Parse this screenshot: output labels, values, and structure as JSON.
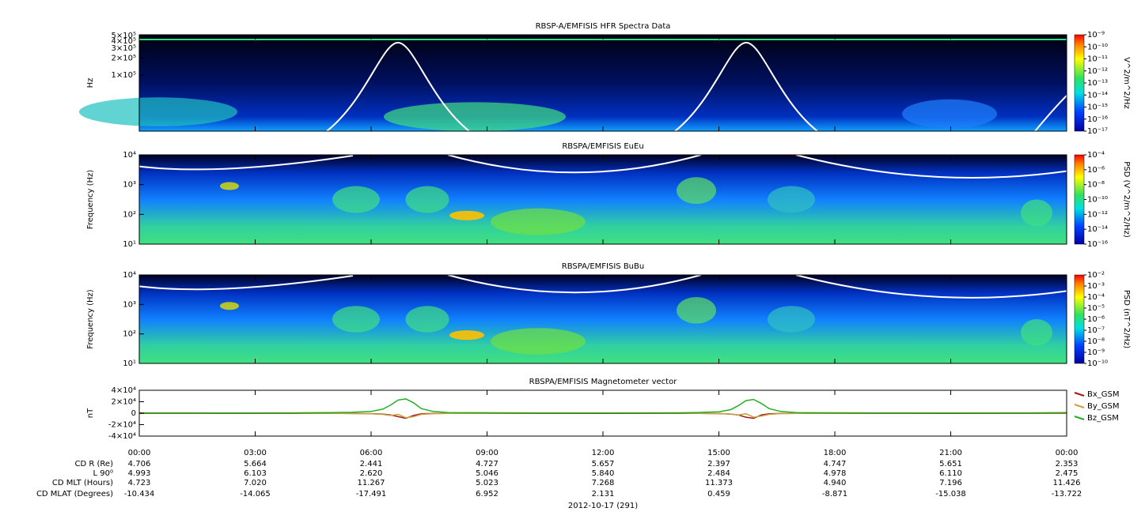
{
  "chart_data": [
    {
      "type": "spectrogram",
      "title": "RBSP-A/EMFISIS  HFR Spectra Data",
      "ylabel": "Hz",
      "ylog": true,
      "ylim": [
        10000,
        520000
      ],
      "yticks": [
        {
          "value": 500000,
          "label": "5×10⁵"
        },
        {
          "value": 400000,
          "label": "4×10⁵"
        },
        {
          "value": 300000,
          "label": "3×10⁵"
        },
        {
          "value": 200000,
          "label": "2×10⁵"
        },
        {
          "value": 100000,
          "label": "1×10⁵"
        }
      ],
      "zlabel": "V^2/m^2/Hz",
      "zlim": [
        1e-17,
        1e-09
      ],
      "zticks": [
        {
          "value": 1e-09,
          "label": "10⁻⁹"
        },
        {
          "value": 1e-10,
          "label": "10⁻¹⁰"
        },
        {
          "value": 1e-11,
          "label": "10⁻¹¹"
        },
        {
          "value": 1e-12,
          "label": "10⁻¹²"
        },
        {
          "value": 1e-13,
          "label": "10⁻¹³"
        },
        {
          "value": 1e-14,
          "label": "10⁻¹⁴"
        },
        {
          "value": 1e-15,
          "label": "10⁻¹⁵"
        },
        {
          "value": 1e-16,
          "label": "10⁻¹⁶"
        },
        {
          "value": 1e-17,
          "label": "10⁻¹⁷"
        }
      ]
    },
    {
      "type": "spectrogram",
      "title": "RBSPA/EMFISIS  EuEu",
      "ylabel": "Frequency (Hz)",
      "ylog": true,
      "ylim": [
        10,
        10000
      ],
      "yticks": [
        {
          "value": 10,
          "label": "10¹"
        },
        {
          "value": 100,
          "label": "10²"
        },
        {
          "value": 1000,
          "label": "10³"
        },
        {
          "value": 10000,
          "label": "10⁴"
        }
      ],
      "zlabel": "PSD (V^2/m^2/Hz)",
      "zlim": [
        1e-16,
        0.0001
      ],
      "zticks": [
        {
          "value": 0.0001,
          "label": "10⁻⁴"
        },
        {
          "value": 1e-06,
          "label": "10⁻⁶"
        },
        {
          "value": 1e-08,
          "label": "10⁻⁸"
        },
        {
          "value": 1e-10,
          "label": "10⁻¹⁰"
        },
        {
          "value": 1e-12,
          "label": "10⁻¹²"
        },
        {
          "value": 1e-14,
          "label": "10⁻¹⁴"
        },
        {
          "value": 1e-16,
          "label": "10⁻¹⁶"
        }
      ]
    },
    {
      "type": "spectrogram",
      "title": "RBSPA/EMFISIS  BuBu",
      "ylabel": "Frequency (Hz)",
      "ylog": true,
      "ylim": [
        10,
        10000
      ],
      "yticks": [
        {
          "value": 10,
          "label": "10¹"
        },
        {
          "value": 100,
          "label": "10²"
        },
        {
          "value": 1000,
          "label": "10³"
        },
        {
          "value": 10000,
          "label": "10⁴"
        }
      ],
      "zlabel": "PSD (nT^2/Hz)",
      "zlim": [
        1e-10,
        0.01
      ],
      "zticks": [
        {
          "value": 0.01,
          "label": "10⁻²"
        },
        {
          "value": 0.001,
          "label": "10⁻³"
        },
        {
          "value": 0.0001,
          "label": "10⁻⁴"
        },
        {
          "value": 1e-05,
          "label": "10⁻⁵"
        },
        {
          "value": 1e-06,
          "label": "10⁻⁶"
        },
        {
          "value": 1e-07,
          "label": "10⁻⁷"
        },
        {
          "value": 1e-08,
          "label": "10⁻⁸"
        },
        {
          "value": 1e-09,
          "label": "10⁻⁹"
        },
        {
          "value": 1e-10,
          "label": "10⁻¹⁰"
        }
      ]
    },
    {
      "type": "line",
      "title": "RBSPA/EMFISIS  Magnetometer vector",
      "ylabel": "nT",
      "ylim": [
        -40000,
        40000
      ],
      "yticks": [
        {
          "value": 40000,
          "label": "4×10⁴"
        },
        {
          "value": 20000,
          "label": "2×10⁴"
        },
        0,
        {
          "value": -20000,
          "label": "-2×10⁴"
        },
        {
          "value": -40000,
          "label": "-4×10⁴"
        }
      ],
      "xlim": [
        0,
        24
      ],
      "xticks": [
        {
          "value": 0,
          "label": "00:00"
        },
        {
          "value": 3,
          "label": "03:00"
        },
        {
          "value": 6,
          "label": "06:00"
        },
        {
          "value": 9,
          "label": "09:00"
        },
        {
          "value": 12,
          "label": "12:00"
        },
        {
          "value": 15,
          "label": "15:00"
        },
        {
          "value": 18,
          "label": "18:00"
        },
        {
          "value": 21,
          "label": "21:00"
        },
        {
          "value": 24,
          "label": "00:00"
        }
      ],
      "x": [
        0,
        2,
        4,
        5,
        5.5,
        6,
        6.3,
        6.5,
        6.7,
        6.9,
        7.1,
        7.3,
        7.6,
        8,
        10,
        12,
        14,
        14.5,
        15,
        15.3,
        15.5,
        15.7,
        15.9,
        16.1,
        16.3,
        16.6,
        17,
        19,
        21,
        23,
        24
      ],
      "series": [
        {
          "name": "Bx_GSM",
          "color": "#a01818",
          "values": [
            -300,
            -300,
            -300,
            -400,
            -500,
            -800,
            -1500,
            -3000,
            -6000,
            -9000,
            -4000,
            -1000,
            -500,
            -400,
            -300,
            -300,
            -300,
            -400,
            -700,
            -1500,
            -3000,
            -7000,
            -9000,
            -3000,
            -1000,
            -500,
            -400,
            -300,
            -300,
            -300,
            -300
          ]
        },
        {
          "name": "By_GSM",
          "color": "#c8a040",
          "values": [
            200,
            200,
            100,
            -200,
            -500,
            -1000,
            -2000,
            -4000,
            -2000,
            -8000,
            -6000,
            -2000,
            -800,
            -300,
            200,
            300,
            200,
            -300,
            -600,
            -1500,
            -3000,
            -1000,
            -7000,
            -5000,
            -2000,
            -700,
            -300,
            200,
            300,
            200,
            200
          ]
        },
        {
          "name": "Bz_GSM",
          "color": "#22b022",
          "values": [
            500,
            400,
            600,
            900,
            1500,
            3000,
            7000,
            14000,
            23000,
            25000,
            18000,
            8000,
            3000,
            1000,
            500,
            400,
            700,
            1200,
            2500,
            6000,
            13000,
            22000,
            24000,
            17000,
            8000,
            3000,
            1000,
            500,
            400,
            600,
            1000
          ]
        }
      ]
    }
  ],
  "ephemeris": {
    "rows": [
      {
        "label": "CD R (Re)",
        "values": [
          "4.706",
          "5.664",
          "2.441",
          "4.727",
          "5.657",
          "2.397",
          "4.747",
          "5.651",
          "2.353"
        ]
      },
      {
        "label": "L 90⁰",
        "values": [
          "4.993",
          "6.103",
          "2.620",
          "5.046",
          "5.840",
          "2.484",
          "4.978",
          "6.110",
          "2.475"
        ]
      },
      {
        "label": "CD MLT (Hours)",
        "values": [
          "4.723",
          "7.020",
          "11.267",
          "5.023",
          "7.268",
          "11.373",
          "4.940",
          "7.196",
          "11.426"
        ]
      },
      {
        "label": "CD MLAT (Degrees)",
        "values": [
          "-10.434",
          "-14.065",
          "-17.491",
          "6.952",
          "2.131",
          "0.459",
          "-8.871",
          "-15.038",
          "-13.722"
        ]
      }
    ],
    "date": "2012-10-17 (291)"
  }
}
